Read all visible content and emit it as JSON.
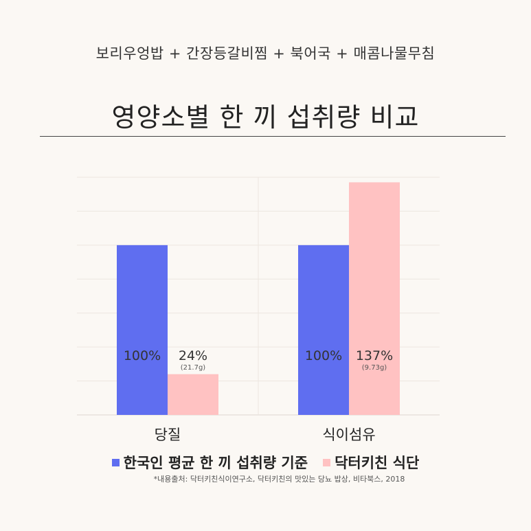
{
  "header": {
    "subtitle": "보리우엉밥 + 간장등갈비찜 + 북어국 + 매콤나물무침",
    "title": "영양소별 한 끼 섭취량 비교"
  },
  "chart_data": {
    "type": "bar",
    "categories": [
      "당질",
      "식이섬유"
    ],
    "series": [
      {
        "name": "한국인 평균 한 끼 섭취량 기준",
        "color": "#5f6ef0",
        "values": [
          100,
          100
        ],
        "labels": [
          "100%",
          "100%"
        ],
        "sublabels": [
          "",
          ""
        ]
      },
      {
        "name": "닥터키친 식단",
        "color": "#ffc2c2",
        "values": [
          24,
          137
        ],
        "labels": [
          "24%",
          "137%"
        ],
        "sublabels": [
          "(21.7g)",
          "(9.73g)"
        ]
      }
    ],
    "ylim": [
      0,
      140
    ],
    "grid": true,
    "legend_position": "bottom"
  },
  "source": "*내용출처: 닥터키친식이연구소, 닥터키친의 맛있는 당뇨 밥상, 비타북스, 2018"
}
